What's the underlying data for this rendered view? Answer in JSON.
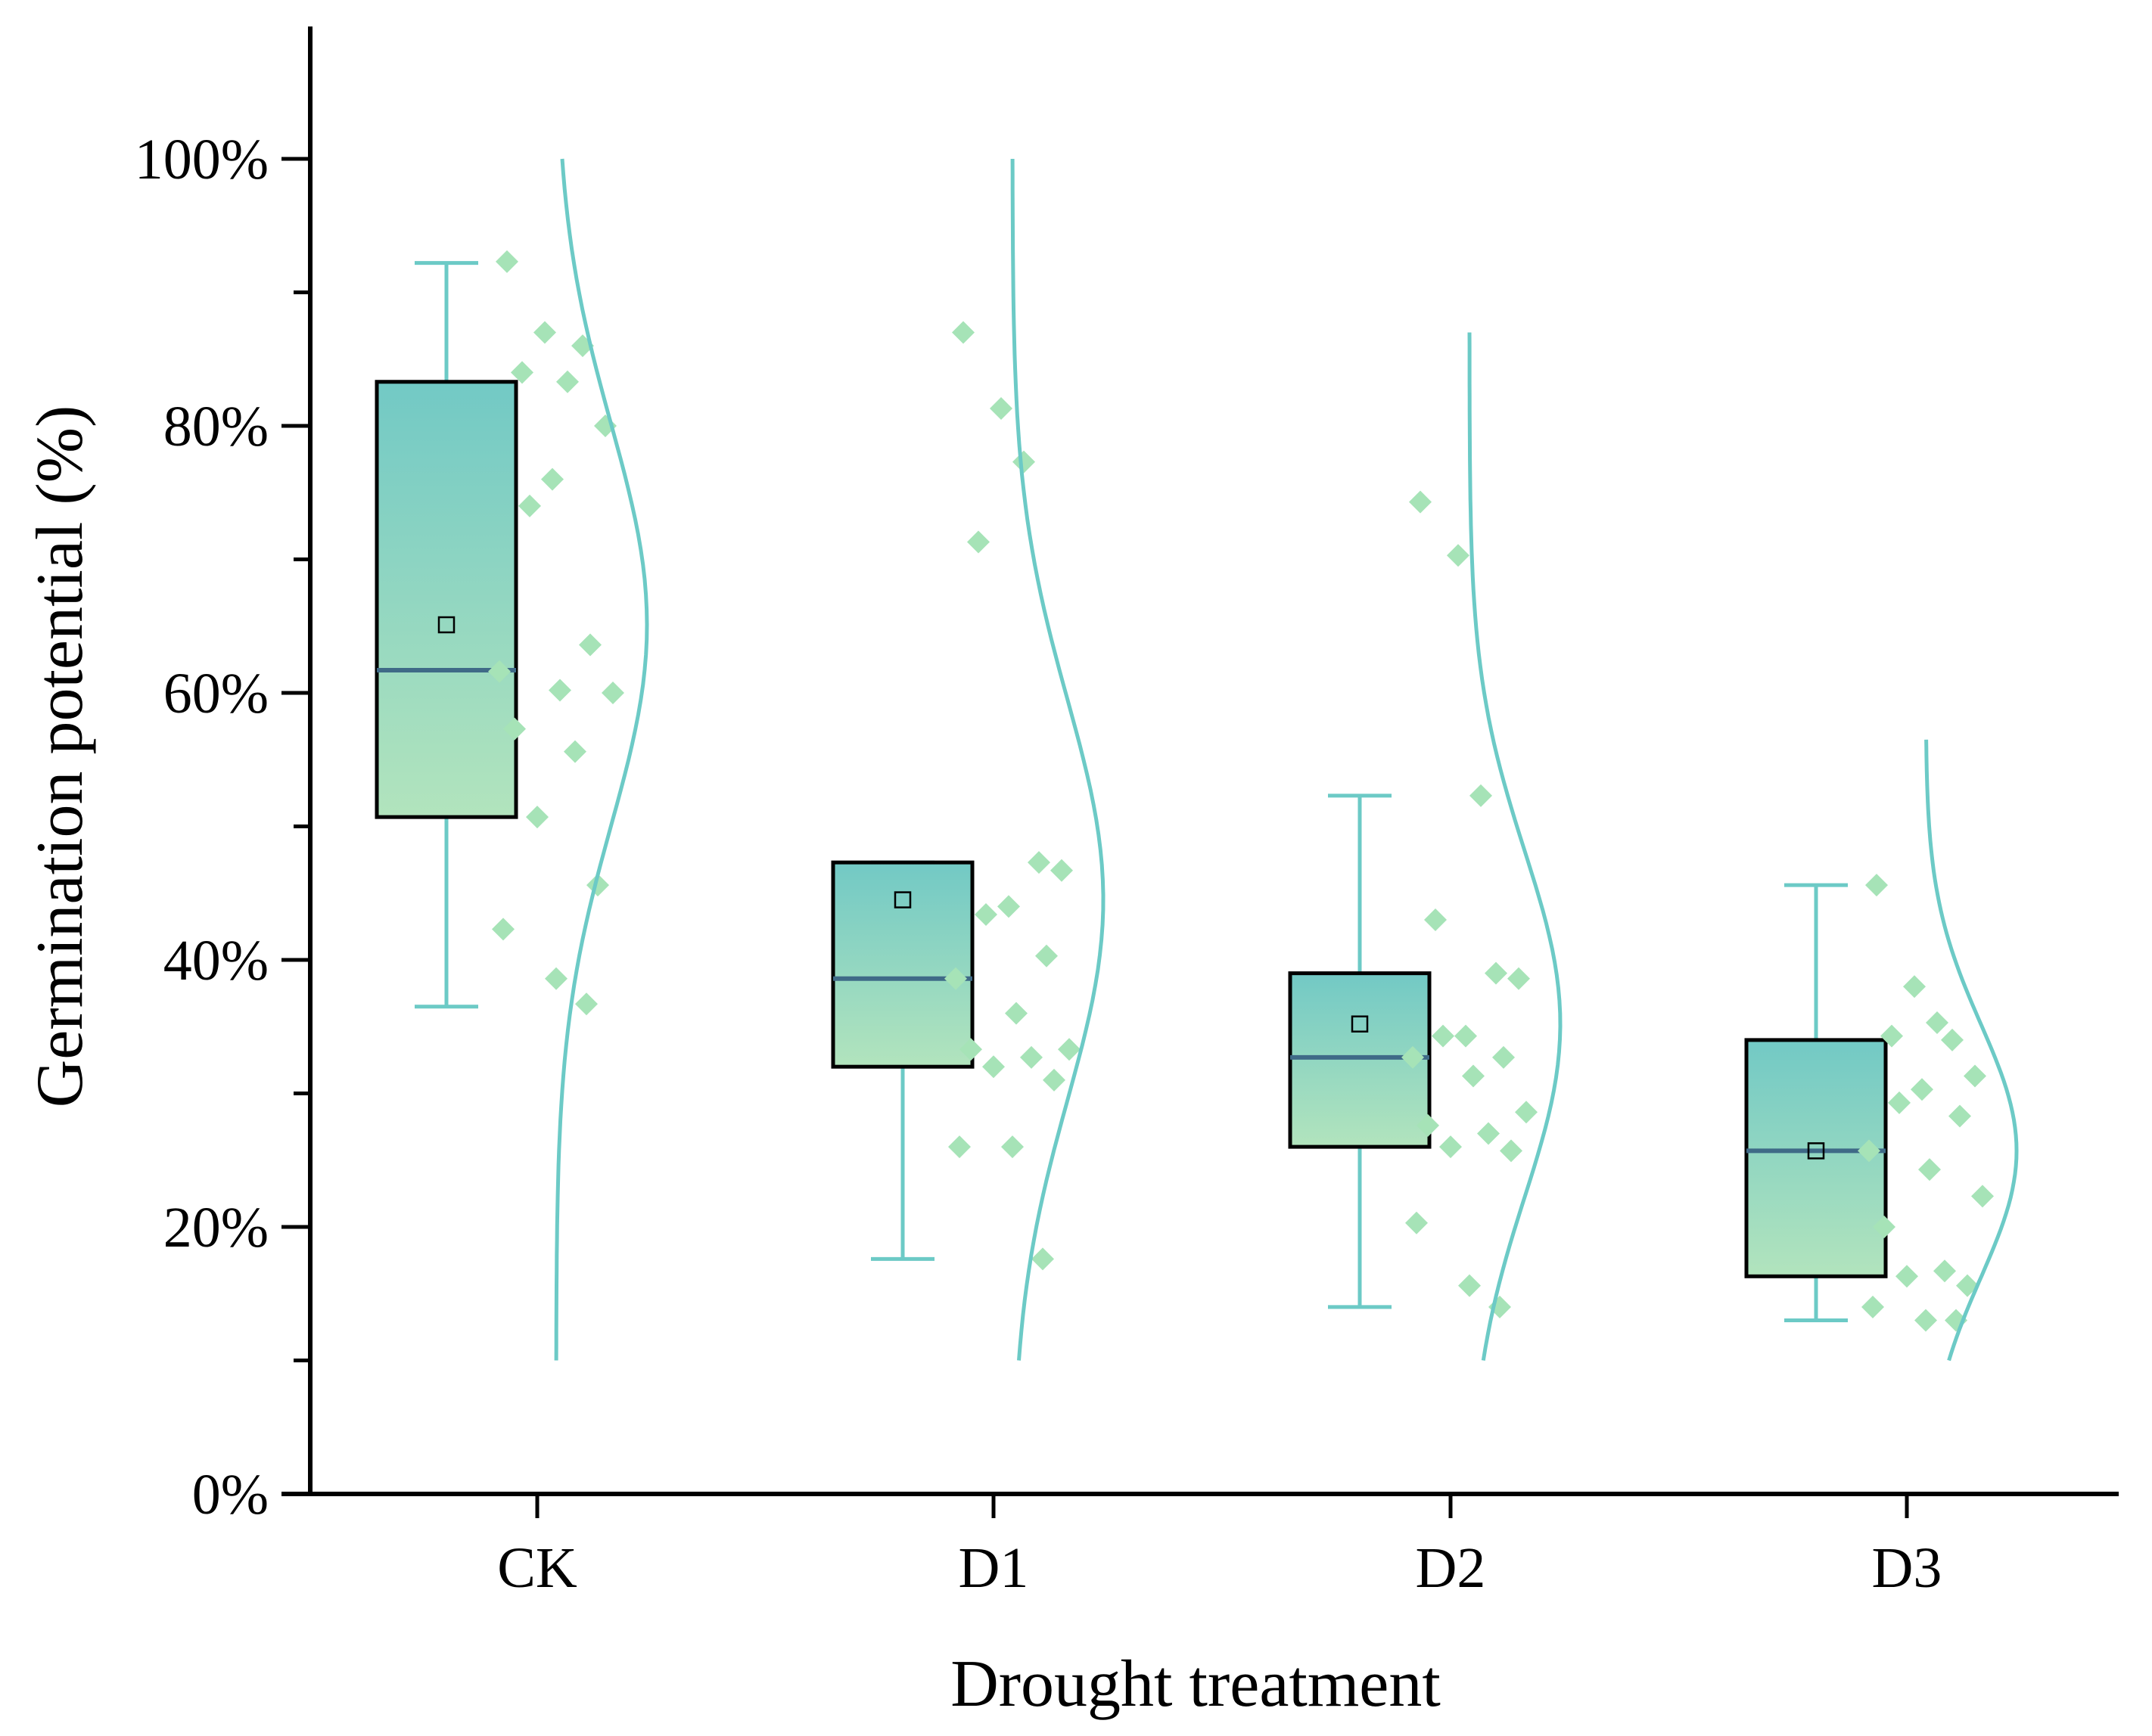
{
  "chart_data": {
    "type": "box-raincloud",
    "title": "",
    "xlabel": "Drought treatment",
    "ylabel": "Germination potential (%)",
    "ylim": [
      0,
      110
    ],
    "y_ticks": [
      0,
      20,
      40,
      60,
      80,
      100
    ],
    "y_tick_labels": [
      "0%",
      "20%",
      "40%",
      "60%",
      "80%",
      "100%"
    ],
    "y_minor_ticks": [
      10,
      30,
      50,
      70,
      90
    ],
    "categories": [
      "CK",
      "D1",
      "D2",
      "D3"
    ],
    "colors": {
      "box_top": "#72c9c5",
      "box_bottom": "#b2e4bd",
      "whisker": "#6ccac6",
      "median": "#3f6a87",
      "points": "#a6e3b7",
      "curve": "#6ccac6",
      "axis": "#000000"
    },
    "groups": [
      {
        "name": "CK",
        "whisker_low": 36.5,
        "q1": 50.7,
        "median": 61.7,
        "q3": 83.3,
        "whisker_high": 92.2,
        "mean": 65.1,
        "curve": {
          "mu": 65.1,
          "sigma": 15.0,
          "min": 10,
          "max": 100
        },
        "points": [
          92.3,
          87.0,
          83.3,
          84.0,
          86.0,
          80.0,
          76.0,
          74.0,
          63.6,
          61.6,
          60.2,
          60.0,
          57.3,
          55.6,
          50.7,
          45.6,
          42.3,
          38.6,
          36.7
        ]
      },
      {
        "name": "D1",
        "whisker_low": 17.6,
        "q1": 32.0,
        "median": 38.6,
        "q3": 47.3,
        "whisker_high": 47.3,
        "mean": 44.5,
        "curve": {
          "mu": 44.5,
          "sigma": 15.0,
          "min": 10,
          "max": 100
        },
        "points": [
          87.0,
          81.3,
          77.3,
          71.3,
          47.3,
          46.7,
          44.0,
          43.4,
          40.3,
          38.6,
          36.0,
          33.3,
          33.3,
          32.7,
          32.0,
          31.0,
          26.0,
          26.0,
          17.6
        ]
      },
      {
        "name": "D2",
        "whisker_low": 14.0,
        "q1": 26.0,
        "median": 32.7,
        "q3": 39.0,
        "whisker_high": 52.3,
        "mean": 35.2,
        "curve": {
          "mu": 35.2,
          "sigma": 13.0,
          "min": 10,
          "max": 87
        },
        "points": [
          74.3,
          70.3,
          52.3,
          43.0,
          39.0,
          38.6,
          34.3,
          34.3,
          32.7,
          32.7,
          31.3,
          28.6,
          27.6,
          27.0,
          26.0,
          25.7,
          20.3,
          15.6,
          14.0
        ]
      },
      {
        "name": "D3",
        "whisker_low": 13.0,
        "q1": 16.3,
        "median": 25.7,
        "q3": 34.0,
        "whisker_high": 45.6,
        "mean": 25.7,
        "curve": {
          "mu": 25.7,
          "sigma": 9.5,
          "min": 10,
          "max": 56.5
        },
        "points": [
          45.6,
          38.0,
          35.3,
          34.3,
          34.0,
          31.3,
          30.3,
          29.3,
          28.3,
          25.7,
          24.3,
          22.3,
          20.0,
          16.7,
          16.3,
          15.6,
          14.0,
          13.0,
          13.0
        ]
      }
    ]
  }
}
